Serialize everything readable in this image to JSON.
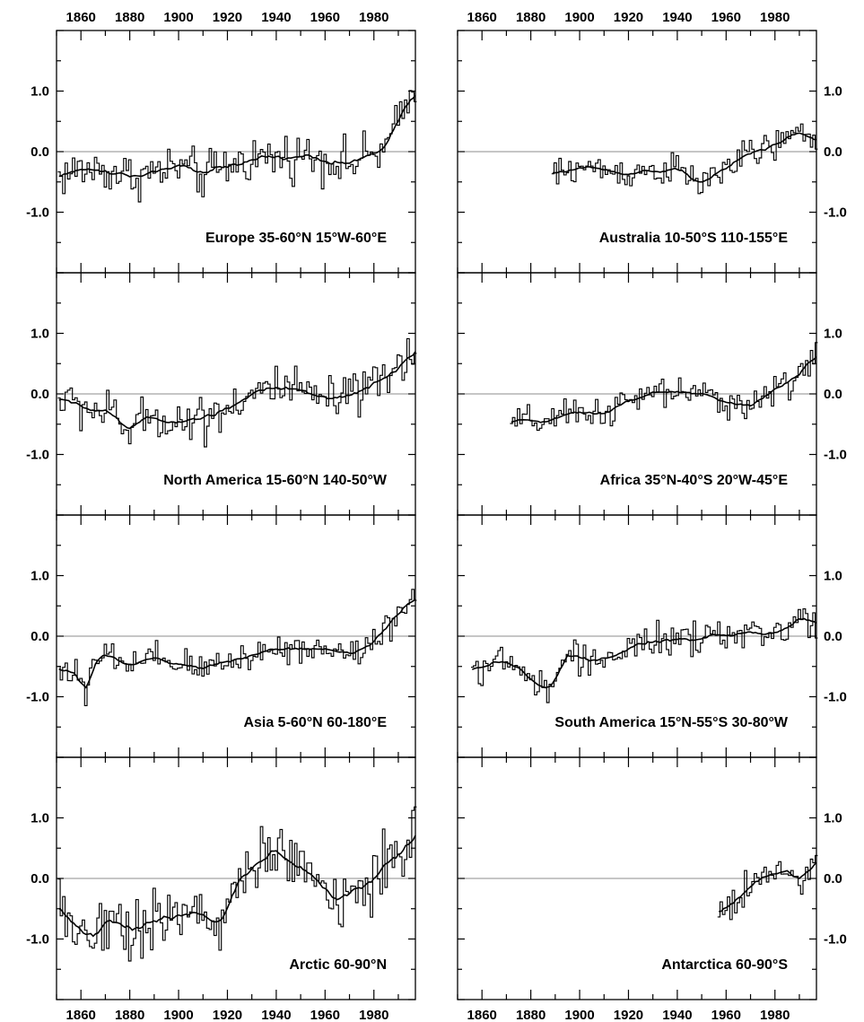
{
  "chart_data": [
    {
      "type": "line",
      "title": "Europe 35-60°N 15°W-60°E",
      "x_range": [
        1850,
        1997
      ],
      "ylim": [
        -2,
        2
      ],
      "x_ticks": [
        "1860",
        "1880",
        "1900",
        "1920",
        "1940",
        "1960",
        "1980"
      ],
      "y_ticks": [
        "1.0",
        "0.0",
        "-1.0"
      ],
      "start": 1851,
      "anchors": [
        [
          1851,
          -0.4
        ],
        [
          1860,
          -0.3
        ],
        [
          1870,
          -0.3
        ],
        [
          1880,
          -0.4
        ],
        [
          1890,
          -0.35
        ],
        [
          1900,
          -0.25
        ],
        [
          1910,
          -0.4
        ],
        [
          1920,
          -0.25
        ],
        [
          1930,
          -0.1
        ],
        [
          1940,
          -0.1
        ],
        [
          1950,
          -0.05
        ],
        [
          1960,
          -0.1
        ],
        [
          1970,
          -0.2
        ],
        [
          1980,
          -0.05
        ],
        [
          1985,
          0.05
        ],
        [
          1990,
          0.45
        ],
        [
          1995,
          0.9
        ],
        [
          1997,
          1.0
        ]
      ]
    },
    {
      "type": "line",
      "title": "Australia 10-50°S 110-155°E",
      "x_range": [
        1850,
        1997
      ],
      "ylim": [
        -2,
        2
      ],
      "x_ticks": [
        "1860",
        "1880",
        "1900",
        "1920",
        "1940",
        "1960",
        "1980"
      ],
      "y_ticks": [
        "1.0",
        "0.0",
        "-1.0"
      ],
      "start": 1889,
      "anchors": [
        [
          1889,
          -0.4
        ],
        [
          1900,
          -0.25
        ],
        [
          1910,
          -0.3
        ],
        [
          1920,
          -0.35
        ],
        [
          1930,
          -0.3
        ],
        [
          1940,
          -0.3
        ],
        [
          1950,
          -0.55
        ],
        [
          1960,
          -0.25
        ],
        [
          1970,
          -0.05
        ],
        [
          1980,
          0.1
        ],
        [
          1990,
          0.3
        ],
        [
          1997,
          0.2
        ]
      ]
    },
    {
      "type": "line",
      "title": "North America 15-60°N 140-50°W",
      "x_range": [
        1850,
        1997
      ],
      "ylim": [
        -2,
        2
      ],
      "x_ticks": [
        "1860",
        "1880",
        "1900",
        "1920",
        "1940",
        "1960",
        "1980"
      ],
      "y_ticks": [
        "1.0",
        "0.0",
        "-1.0"
      ],
      "start": 1851,
      "anchors": [
        [
          1851,
          -0.1
        ],
        [
          1860,
          -0.2
        ],
        [
          1870,
          -0.3
        ],
        [
          1880,
          -0.6
        ],
        [
          1890,
          -0.35
        ],
        [
          1900,
          -0.45
        ],
        [
          1910,
          -0.4
        ],
        [
          1920,
          -0.2
        ],
        [
          1930,
          0.0
        ],
        [
          1940,
          0.1
        ],
        [
          1950,
          0.0
        ],
        [
          1960,
          -0.1
        ],
        [
          1970,
          -0.1
        ],
        [
          1980,
          0.1
        ],
        [
          1990,
          0.4
        ],
        [
          1997,
          0.8
        ]
      ]
    },
    {
      "type": "line",
      "title": "Africa 35°N-40°S 20°W-45°E",
      "x_range": [
        1850,
        1997
      ],
      "ylim": [
        -2,
        2
      ],
      "x_ticks": [
        "1860",
        "1880",
        "1900",
        "1920",
        "1940",
        "1960",
        "1980"
      ],
      "y_ticks": [
        "1.0",
        "0.0",
        "-1.0"
      ],
      "start": 1872,
      "anchors": [
        [
          1872,
          -0.5
        ],
        [
          1880,
          -0.45
        ],
        [
          1890,
          -0.45
        ],
        [
          1900,
          -0.3
        ],
        [
          1910,
          -0.3
        ],
        [
          1920,
          -0.15
        ],
        [
          1930,
          0.0
        ],
        [
          1940,
          0.05
        ],
        [
          1950,
          -0.05
        ],
        [
          1960,
          -0.1
        ],
        [
          1970,
          -0.2
        ],
        [
          1980,
          0.05
        ],
        [
          1990,
          0.35
        ],
        [
          1997,
          0.65
        ]
      ]
    },
    {
      "type": "line",
      "title": "Asia 5-60°N 60-180°E",
      "x_range": [
        1850,
        1997
      ],
      "ylim": [
        -2,
        2
      ],
      "x_ticks": [
        "1860",
        "1880",
        "1900",
        "1920",
        "1940",
        "1960",
        "1980"
      ],
      "y_ticks": [
        "1.0",
        "0.0",
        "-1.0"
      ],
      "start": 1851,
      "anchors": [
        [
          1851,
          -0.5
        ],
        [
          1858,
          -0.6
        ],
        [
          1862,
          -1.05
        ],
        [
          1866,
          -0.4
        ],
        [
          1870,
          -0.3
        ],
        [
          1880,
          -0.5
        ],
        [
          1890,
          -0.4
        ],
        [
          1900,
          -0.45
        ],
        [
          1910,
          -0.55
        ],
        [
          1920,
          -0.4
        ],
        [
          1930,
          -0.3
        ],
        [
          1940,
          -0.2
        ],
        [
          1950,
          -0.2
        ],
        [
          1960,
          -0.2
        ],
        [
          1970,
          -0.3
        ],
        [
          1980,
          -0.1
        ],
        [
          1990,
          0.4
        ],
        [
          1997,
          0.65
        ]
      ]
    },
    {
      "type": "line",
      "title": "South America 15°N-55°S 30-80°W",
      "x_range": [
        1850,
        1997
      ],
      "ylim": [
        -2,
        2
      ],
      "x_ticks": [
        "1860",
        "1880",
        "1900",
        "1920",
        "1940",
        "1960",
        "1980"
      ],
      "y_ticks": [
        "1.0",
        "0.0",
        "-1.0"
      ],
      "start": 1856,
      "anchors": [
        [
          1856,
          -0.5
        ],
        [
          1865,
          -0.45
        ],
        [
          1875,
          -0.5
        ],
        [
          1882,
          -0.8
        ],
        [
          1888,
          -0.9
        ],
        [
          1895,
          -0.3
        ],
        [
          1905,
          -0.4
        ],
        [
          1915,
          -0.3
        ],
        [
          1925,
          -0.15
        ],
        [
          1935,
          -0.05
        ],
        [
          1945,
          -0.1
        ],
        [
          1955,
          0.0
        ],
        [
          1965,
          0.05
        ],
        [
          1975,
          0.0
        ],
        [
          1985,
          0.15
        ],
        [
          1990,
          0.3
        ],
        [
          1997,
          0.25
        ]
      ]
    },
    {
      "type": "line",
      "title": "Arctic 60-90°N",
      "x_range": [
        1850,
        1997
      ],
      "ylim": [
        -2,
        2
      ],
      "x_ticks": [
        "1860",
        "1880",
        "1900",
        "1920",
        "1940",
        "1960",
        "1980"
      ],
      "y_ticks": [
        "1.0",
        "0.0",
        "-1.0"
      ],
      "start": 1851,
      "anchors": [
        [
          1851,
          -0.5
        ],
        [
          1860,
          -0.8
        ],
        [
          1865,
          -1.0
        ],
        [
          1870,
          -0.7
        ],
        [
          1880,
          -0.75
        ],
        [
          1890,
          -0.7
        ],
        [
          1900,
          -0.65
        ],
        [
          1910,
          -0.6
        ],
        [
          1918,
          -0.7
        ],
        [
          1925,
          0.0
        ],
        [
          1935,
          0.3
        ],
        [
          1940,
          0.5
        ],
        [
          1945,
          0.2
        ],
        [
          1955,
          0.0
        ],
        [
          1965,
          -0.3
        ],
        [
          1970,
          -0.2
        ],
        [
          1980,
          0.0
        ],
        [
          1990,
          0.4
        ],
        [
          1997,
          0.7
        ]
      ]
    },
    {
      "type": "line",
      "title": "Antarctica 60-90°S",
      "x_range": [
        1850,
        1997
      ],
      "ylim": [
        -2,
        2
      ],
      "x_ticks": [
        "1860",
        "1880",
        "1900",
        "1920",
        "1940",
        "1960",
        "1980"
      ],
      "y_ticks": [
        "1.0",
        "0.0",
        "-1.0"
      ],
      "start": 1957,
      "anchors": [
        [
          1957,
          -0.6
        ],
        [
          1962,
          -0.4
        ],
        [
          1968,
          -0.2
        ],
        [
          1975,
          0.0
        ],
        [
          1980,
          0.05
        ],
        [
          1985,
          0.15
        ],
        [
          1990,
          0.0
        ],
        [
          1997,
          0.3
        ]
      ]
    }
  ]
}
